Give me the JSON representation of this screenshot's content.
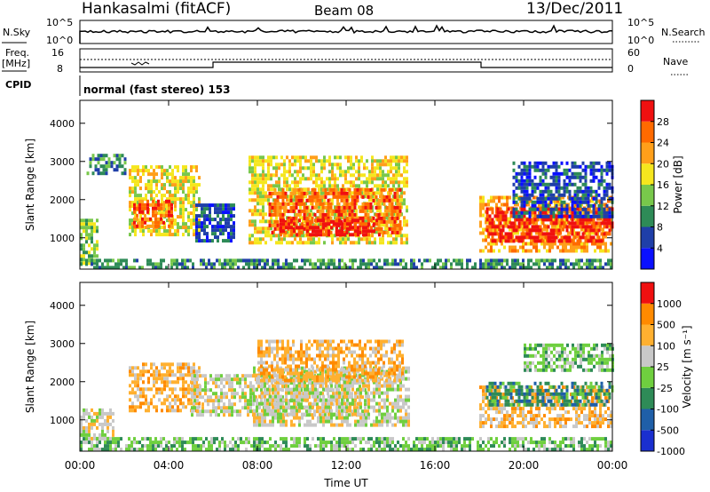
{
  "header": {
    "station": "Hankasalmi (fitACF)",
    "beam": "Beam 08",
    "date": "13/Dec/2011"
  },
  "top_panels": {
    "nsky_label": "N.Sky",
    "nsearch_label": "N.Search",
    "nsky_ticks": [
      "10^5",
      "10^0"
    ],
    "freq_label_1": "Freq.",
    "freq_label_2": "[MHz]",
    "freq_ticks": [
      "16",
      "8"
    ],
    "nave_ticks": [
      "60",
      "0"
    ],
    "nave_label": "Nave",
    "cpid_label": "CPID",
    "cpid_text": "normal (fast stereo) 153"
  },
  "chart_data": [
    {
      "type": "heatmap",
      "panel": "power",
      "xlabel": "",
      "ylabel": "Slant Range [km]",
      "x_ticks": [
        "00:00",
        "04:00",
        "08:00",
        "12:00",
        "16:00",
        "20:00",
        "00:00"
      ],
      "xlim": [
        0,
        24
      ],
      "y_ticks": [
        1000,
        2000,
        3000,
        4000
      ],
      "ylim": [
        180,
        4600
      ],
      "colorbar_label": "Power [dB]",
      "colorbar_ticks": [
        4,
        8,
        12,
        16,
        20,
        24,
        28
      ],
      "colorbar_range": [
        0,
        32
      ],
      "colors": [
        "#0a10ff",
        "#1f3fa8",
        "#2e8b57",
        "#78c84b",
        "#f5e61e",
        "#ff9f1a",
        "#ff6a00",
        "#f01010"
      ],
      "regions": [
        {
          "x0": 0.0,
          "x1": 0.8,
          "y0": 300,
          "y1": 1500,
          "level": 3
        },
        {
          "x0": 0.0,
          "x1": 24.0,
          "y0": 200,
          "y1": 450,
          "level": 2
        },
        {
          "x0": 0.3,
          "x1": 2.0,
          "y0": 2700,
          "y1": 3200,
          "level": 2
        },
        {
          "x0": 2.2,
          "x1": 5.4,
          "y0": 1100,
          "y1": 2900,
          "level": 4
        },
        {
          "x0": 2.4,
          "x1": 4.2,
          "y0": 1300,
          "y1": 2000,
          "level": 6
        },
        {
          "x0": 5.2,
          "x1": 7.0,
          "y0": 900,
          "y1": 1900,
          "level": 1
        },
        {
          "x0": 7.6,
          "x1": 14.8,
          "y0": 900,
          "y1": 3150,
          "level": 4
        },
        {
          "x0": 8.5,
          "x1": 14.5,
          "y0": 1100,
          "y1": 2300,
          "level": 6
        },
        {
          "x0": 9.0,
          "x1": 13.5,
          "y0": 1100,
          "y1": 1500,
          "level": 7
        },
        {
          "x0": 18.0,
          "x1": 24.0,
          "y0": 700,
          "y1": 2100,
          "level": 5
        },
        {
          "x0": 18.3,
          "x1": 24.0,
          "y0": 900,
          "y1": 1800,
          "level": 7
        },
        {
          "x0": 19.5,
          "x1": 24.0,
          "y0": 1600,
          "y1": 3000,
          "level": 1
        }
      ]
    },
    {
      "type": "heatmap",
      "panel": "velocity",
      "xlabel": "Time UT",
      "ylabel": "Slant Range [km]",
      "x_ticks": [
        "00:00",
        "04:00",
        "08:00",
        "12:00",
        "16:00",
        "20:00",
        "00:00"
      ],
      "xlim": [
        0,
        24
      ],
      "y_ticks": [
        1000,
        2000,
        3000,
        4000
      ],
      "ylim": [
        180,
        4600
      ],
      "colorbar_label": "Velocity [m s⁻¹]",
      "colorbar_ticks": [
        "1000",
        "500",
        "100",
        "25",
        "-25",
        "-100",
        "-500",
        "-1000"
      ],
      "colors": [
        "#1a2fcf",
        "#1f5fa8",
        "#2e8b57",
        "#6fcf3f",
        "#c8c8c8",
        "#ffb030",
        "#ff8a00",
        "#f01010"
      ],
      "regions": [
        {
          "x0": 0.0,
          "x1": 24.0,
          "y0": 200,
          "y1": 550,
          "level": 3
        },
        {
          "x0": 0.0,
          "x1": 1.5,
          "y0": 550,
          "y1": 1300,
          "level": 4
        },
        {
          "x0": 2.2,
          "x1": 5.4,
          "y0": 1200,
          "y1": 2500,
          "level": 5
        },
        {
          "x0": 5.0,
          "x1": 13.0,
          "y0": 1100,
          "y1": 2200,
          "level": 4
        },
        {
          "x0": 7.8,
          "x1": 14.8,
          "y0": 900,
          "y1": 2400,
          "level": 4
        },
        {
          "x0": 8.0,
          "x1": 14.5,
          "y0": 2000,
          "y1": 3100,
          "level": 5
        },
        {
          "x0": 18.0,
          "x1": 24.0,
          "y0": 800,
          "y1": 1900,
          "level": 5
        },
        {
          "x0": 18.3,
          "x1": 24.0,
          "y0": 1400,
          "y1": 2000,
          "level": 2
        },
        {
          "x0": 20.0,
          "x1": 24.0,
          "y0": 2300,
          "y1": 3000,
          "level": 3
        }
      ]
    }
  ]
}
